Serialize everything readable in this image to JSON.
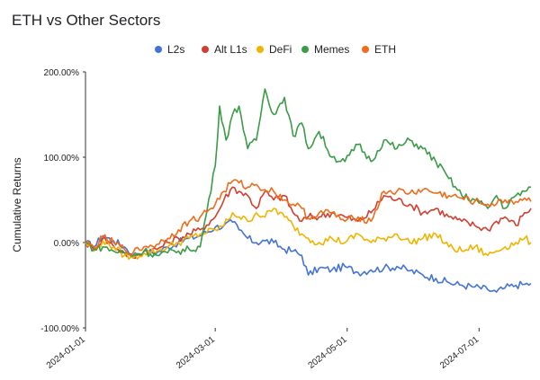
{
  "chart_data": {
    "type": "line",
    "title": "ETH vs Other Sectors",
    "ylabel": "Cumulative Returns",
    "xlabel": "",
    "x_ticks": [
      "2024-01-01",
      "2024-03-01",
      "2024-05-01",
      "2024-07-01"
    ],
    "y_ticks": [
      "200.00%",
      "100.00%",
      "0.00%",
      "-100.00%"
    ],
    "ylim": [
      -100,
      200
    ],
    "grid": false,
    "legend_position": "top",
    "x_start": "2024-01-01",
    "x_end": "2024-07-25",
    "series": [
      {
        "name": "L2s",
        "color": "#4573d5",
        "values": [
          [
            "2024-01-01",
            0
          ],
          [
            "2024-01-05",
            -5
          ],
          [
            "2024-01-09",
            8
          ],
          [
            "2024-01-14",
            2
          ],
          [
            "2024-01-19",
            -5
          ],
          [
            "2024-01-23",
            -15
          ],
          [
            "2024-01-28",
            -10
          ],
          [
            "2024-02-03",
            -12
          ],
          [
            "2024-02-08",
            -5
          ],
          [
            "2024-02-13",
            0
          ],
          [
            "2024-02-18",
            5
          ],
          [
            "2024-02-23",
            8
          ],
          [
            "2024-03-01",
            18
          ],
          [
            "2024-03-05",
            20
          ],
          [
            "2024-03-09",
            24
          ],
          [
            "2024-03-12",
            15
          ],
          [
            "2024-03-16",
            5
          ],
          [
            "2024-03-20",
            0
          ],
          [
            "2024-03-24",
            2
          ],
          [
            "2024-03-28",
            0
          ],
          [
            "2024-04-02",
            -8
          ],
          [
            "2024-04-06",
            -10
          ],
          [
            "2024-04-10",
            -15
          ],
          [
            "2024-04-13",
            -38
          ],
          [
            "2024-04-18",
            -30
          ],
          [
            "2024-04-24",
            -32
          ],
          [
            "2024-04-30",
            -28
          ],
          [
            "2024-05-06",
            -35
          ],
          [
            "2024-05-12",
            -32
          ],
          [
            "2024-05-18",
            -30
          ],
          [
            "2024-05-24",
            -28
          ],
          [
            "2024-05-30",
            -33
          ],
          [
            "2024-06-05",
            -38
          ],
          [
            "2024-06-11",
            -42
          ],
          [
            "2024-06-17",
            -47
          ],
          [
            "2024-06-23",
            -50
          ],
          [
            "2024-06-29",
            -52
          ],
          [
            "2024-07-05",
            -55
          ],
          [
            "2024-07-09",
            -58
          ],
          [
            "2024-07-13",
            -53
          ],
          [
            "2024-07-18",
            -50
          ],
          [
            "2024-07-22",
            -49
          ],
          [
            "2024-07-25",
            -48
          ]
        ]
      },
      {
        "name": "Alt L1s",
        "color": "#d13f31",
        "values": [
          [
            "2024-01-01",
            0
          ],
          [
            "2024-01-05",
            -8
          ],
          [
            "2024-01-09",
            5
          ],
          [
            "2024-01-14",
            -4
          ],
          [
            "2024-01-19",
            -12
          ],
          [
            "2024-01-23",
            -18
          ],
          [
            "2024-01-28",
            -10
          ],
          [
            "2024-02-03",
            -8
          ],
          [
            "2024-02-08",
            0
          ],
          [
            "2024-02-13",
            5
          ],
          [
            "2024-02-18",
            10
          ],
          [
            "2024-02-23",
            15
          ],
          [
            "2024-03-01",
            30
          ],
          [
            "2024-03-05",
            50
          ],
          [
            "2024-03-09",
            65
          ],
          [
            "2024-03-12",
            60
          ],
          [
            "2024-03-16",
            55
          ],
          [
            "2024-03-20",
            40
          ],
          [
            "2024-03-24",
            60
          ],
          [
            "2024-03-28",
            50
          ],
          [
            "2024-04-02",
            55
          ],
          [
            "2024-04-06",
            35
          ],
          [
            "2024-04-10",
            25
          ],
          [
            "2024-04-13",
            30
          ],
          [
            "2024-04-18",
            30
          ],
          [
            "2024-04-24",
            35
          ],
          [
            "2024-04-30",
            30
          ],
          [
            "2024-05-06",
            25
          ],
          [
            "2024-05-12",
            35
          ],
          [
            "2024-05-18",
            55
          ],
          [
            "2024-05-24",
            50
          ],
          [
            "2024-05-30",
            45
          ],
          [
            "2024-06-05",
            35
          ],
          [
            "2024-06-11",
            40
          ],
          [
            "2024-06-17",
            30
          ],
          [
            "2024-06-23",
            25
          ],
          [
            "2024-06-29",
            20
          ],
          [
            "2024-07-05",
            15
          ],
          [
            "2024-07-09",
            25
          ],
          [
            "2024-07-13",
            30
          ],
          [
            "2024-07-18",
            20
          ],
          [
            "2024-07-22",
            35
          ],
          [
            "2024-07-25",
            40
          ]
        ]
      },
      {
        "name": "DeFi",
        "color": "#f0b400",
        "values": [
          [
            "2024-01-01",
            0
          ],
          [
            "2024-01-05",
            -10
          ],
          [
            "2024-01-09",
            2
          ],
          [
            "2024-01-14",
            -5
          ],
          [
            "2024-01-19",
            -15
          ],
          [
            "2024-01-23",
            -18
          ],
          [
            "2024-01-28",
            -12
          ],
          [
            "2024-02-03",
            -10
          ],
          [
            "2024-02-08",
            -5
          ],
          [
            "2024-02-13",
            0
          ],
          [
            "2024-02-18",
            5
          ],
          [
            "2024-02-23",
            10
          ],
          [
            "2024-03-01",
            15
          ],
          [
            "2024-03-05",
            20
          ],
          [
            "2024-03-09",
            35
          ],
          [
            "2024-03-12",
            30
          ],
          [
            "2024-03-16",
            25
          ],
          [
            "2024-03-20",
            35
          ],
          [
            "2024-03-24",
            30
          ],
          [
            "2024-03-28",
            40
          ],
          [
            "2024-04-02",
            30
          ],
          [
            "2024-04-06",
            20
          ],
          [
            "2024-04-10",
            10
          ],
          [
            "2024-04-13",
            5
          ],
          [
            "2024-04-18",
            0
          ],
          [
            "2024-04-24",
            5
          ],
          [
            "2024-04-30",
            0
          ],
          [
            "2024-05-06",
            10
          ],
          [
            "2024-05-12",
            0
          ],
          [
            "2024-05-18",
            5
          ],
          [
            "2024-05-24",
            10
          ],
          [
            "2024-05-30",
            0
          ],
          [
            "2024-06-05",
            5
          ],
          [
            "2024-06-11",
            10
          ],
          [
            "2024-06-17",
            -5
          ],
          [
            "2024-06-23",
            -10
          ],
          [
            "2024-06-29",
            -5
          ],
          [
            "2024-07-05",
            -15
          ],
          [
            "2024-07-09",
            -10
          ],
          [
            "2024-07-13",
            -5
          ],
          [
            "2024-07-18",
            0
          ],
          [
            "2024-07-22",
            5
          ],
          [
            "2024-07-25",
            0
          ]
        ]
      },
      {
        "name": "Memes",
        "color": "#3b9b46",
        "values": [
          [
            "2024-01-01",
            0
          ],
          [
            "2024-01-05",
            -8
          ],
          [
            "2024-01-09",
            -5
          ],
          [
            "2024-01-14",
            -10
          ],
          [
            "2024-01-19",
            -12
          ],
          [
            "2024-01-23",
            -15
          ],
          [
            "2024-01-28",
            -10
          ],
          [
            "2024-02-03",
            -15
          ],
          [
            "2024-02-08",
            -12
          ],
          [
            "2024-02-13",
            -10
          ],
          [
            "2024-02-18",
            -8
          ],
          [
            "2024-02-23",
            -5
          ],
          [
            "2024-03-01",
            90
          ],
          [
            "2024-03-03",
            160
          ],
          [
            "2024-03-06",
            120
          ],
          [
            "2024-03-09",
            150
          ],
          [
            "2024-03-12",
            160
          ],
          [
            "2024-03-16",
            110
          ],
          [
            "2024-03-20",
            120
          ],
          [
            "2024-03-24",
            180
          ],
          [
            "2024-03-28",
            150
          ],
          [
            "2024-04-02",
            170
          ],
          [
            "2024-04-06",
            125
          ],
          [
            "2024-04-10",
            140
          ],
          [
            "2024-04-13",
            110
          ],
          [
            "2024-04-18",
            130
          ],
          [
            "2024-04-24",
            100
          ],
          [
            "2024-04-30",
            95
          ],
          [
            "2024-05-06",
            115
          ],
          [
            "2024-05-12",
            95
          ],
          [
            "2024-05-18",
            120
          ],
          [
            "2024-05-24",
            110
          ],
          [
            "2024-05-30",
            120
          ],
          [
            "2024-06-05",
            110
          ],
          [
            "2024-06-11",
            95
          ],
          [
            "2024-06-17",
            75
          ],
          [
            "2024-06-23",
            55
          ],
          [
            "2024-06-29",
            50
          ],
          [
            "2024-07-05",
            40
          ],
          [
            "2024-07-09",
            55
          ],
          [
            "2024-07-13",
            40
          ],
          [
            "2024-07-18",
            55
          ],
          [
            "2024-07-22",
            60
          ],
          [
            "2024-07-25",
            65
          ]
        ]
      },
      {
        "name": "ETH",
        "color": "#ee6c1a",
        "values": [
          [
            "2024-01-01",
            0
          ],
          [
            "2024-01-05",
            -6
          ],
          [
            "2024-01-09",
            6
          ],
          [
            "2024-01-14",
            0
          ],
          [
            "2024-01-19",
            -8
          ],
          [
            "2024-01-23",
            -12
          ],
          [
            "2024-01-28",
            -5
          ],
          [
            "2024-02-03",
            -2
          ],
          [
            "2024-02-08",
            5
          ],
          [
            "2024-02-13",
            15
          ],
          [
            "2024-02-18",
            25
          ],
          [
            "2024-02-23",
            30
          ],
          [
            "2024-03-01",
            45
          ],
          [
            "2024-03-05",
            60
          ],
          [
            "2024-03-09",
            72
          ],
          [
            "2024-03-12",
            70
          ],
          [
            "2024-03-16",
            65
          ],
          [
            "2024-03-20",
            68
          ],
          [
            "2024-03-24",
            62
          ],
          [
            "2024-03-28",
            60
          ],
          [
            "2024-04-02",
            50
          ],
          [
            "2024-04-06",
            45
          ],
          [
            "2024-04-10",
            40
          ],
          [
            "2024-04-13",
            28
          ],
          [
            "2024-04-18",
            35
          ],
          [
            "2024-04-24",
            35
          ],
          [
            "2024-04-30",
            25
          ],
          [
            "2024-05-06",
            30
          ],
          [
            "2024-05-12",
            25
          ],
          [
            "2024-05-18",
            60
          ],
          [
            "2024-05-24",
            60
          ],
          [
            "2024-05-30",
            58
          ],
          [
            "2024-06-05",
            62
          ],
          [
            "2024-06-11",
            58
          ],
          [
            "2024-06-17",
            55
          ],
          [
            "2024-06-23",
            52
          ],
          [
            "2024-06-29",
            48
          ],
          [
            "2024-07-05",
            45
          ],
          [
            "2024-07-09",
            45
          ],
          [
            "2024-07-13",
            50
          ],
          [
            "2024-07-18",
            48
          ],
          [
            "2024-07-22",
            52
          ],
          [
            "2024-07-25",
            48
          ]
        ]
      }
    ]
  }
}
